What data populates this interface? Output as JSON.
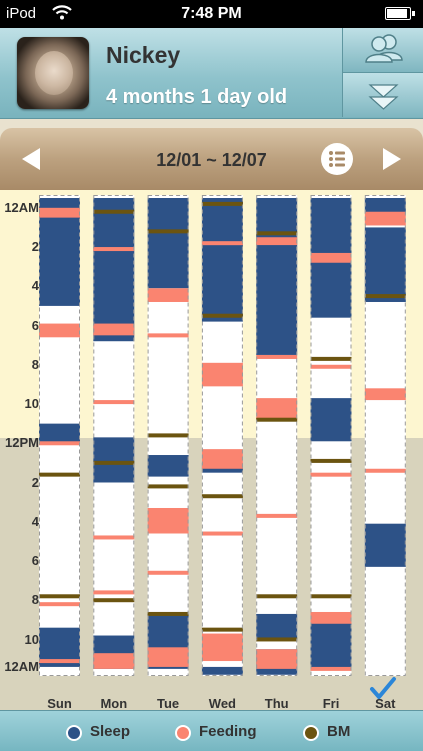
{
  "status_bar": {
    "carrier": "iPod",
    "time": "7:48 PM"
  },
  "profile": {
    "name": "Nickey",
    "age": "4 months 1 day old"
  },
  "week_nav": {
    "range": "12/01 ~ 12/07"
  },
  "hour_labels": [
    "12AM",
    "2",
    "4",
    "6",
    "8",
    "10",
    "12PM",
    "2",
    "4",
    "6",
    "8",
    "10",
    "12AM"
  ],
  "legend": [
    {
      "label": "Sleep",
      "color": "#2d5287"
    },
    {
      "label": "Feeding",
      "color": "#fa8470"
    },
    {
      "label": "BM",
      "color": "#6b5410"
    }
  ],
  "colors": {
    "sleep": "#2d5287",
    "feeding": "#fa8470",
    "bm": "#6b5410",
    "empty": "#ffffff",
    "check": "#2b86d8"
  },
  "chart_data": {
    "type": "timeline",
    "y_unit": "hour of day",
    "ylim": [
      0,
      24
    ],
    "days": [
      {
        "label": "Sun",
        "sleep": [
          [
            0,
            5.5
          ],
          [
            11.5,
            12.5
          ],
          [
            21.9,
            23.9
          ]
        ],
        "feeding": [
          [
            0.5,
            1.0
          ],
          [
            6.4,
            7.1
          ],
          [
            12.4,
            12.6
          ],
          [
            20.6,
            20.8
          ],
          [
            23.5,
            23.7
          ]
        ],
        "bm": [
          14.1,
          20.3
        ]
      },
      {
        "label": "Mon",
        "sleep": [
          [
            0,
            7.3
          ],
          [
            12.2,
            14.5
          ],
          [
            22.3,
            24.0
          ]
        ],
        "feeding": [
          [
            2.5,
            2.7
          ],
          [
            6.4,
            7.0
          ],
          [
            10.3,
            10.5
          ],
          [
            17.2,
            17.4
          ],
          [
            20.0,
            20.2
          ],
          [
            23.2,
            24.0
          ]
        ],
        "bm": [
          0.7,
          13.5,
          20.5
        ]
      },
      {
        "label": "Tue",
        "sleep": [
          [
            0,
            4.6
          ],
          [
            13.1,
            14.2
          ],
          [
            21.2,
            24.0
          ]
        ],
        "feeding": [
          [
            4.6,
            5.3
          ],
          [
            6.9,
            7.1
          ],
          [
            15.8,
            17.1
          ],
          [
            19.0,
            19.2
          ],
          [
            22.9,
            23.9
          ]
        ],
        "bm": [
          1.7,
          12.1,
          14.7,
          21.2
        ]
      },
      {
        "label": "Wed",
        "sleep": [
          [
            0,
            6.3
          ],
          [
            13.5,
            14.0
          ],
          [
            23.9,
            24.3
          ]
        ],
        "feeding": [
          [
            2.2,
            2.4
          ],
          [
            8.4,
            9.6
          ],
          [
            12.8,
            13.8
          ],
          [
            17.0,
            17.2
          ],
          [
            22.2,
            23.6
          ]
        ],
        "bm": [
          0.3,
          6.0,
          15.2,
          22.0
        ]
      },
      {
        "label": "Thu",
        "sleep": [
          [
            0,
            8.0
          ],
          [
            21.2,
            22.5
          ],
          [
            23.0,
            24.3
          ]
        ],
        "feeding": [
          [
            2.0,
            2.4
          ],
          [
            8.0,
            8.2
          ],
          [
            10.2,
            11.3
          ],
          [
            16.1,
            16.3
          ],
          [
            23.0,
            24.0
          ]
        ],
        "bm": [
          1.8,
          11.3,
          20.3,
          22.5
        ]
      },
      {
        "label": "Fri",
        "sleep": [
          [
            0,
            6.1
          ],
          [
            10.2,
            12.4
          ],
          [
            21.5,
            24.0
          ]
        ],
        "feeding": [
          [
            2.8,
            3.3
          ],
          [
            8.5,
            8.7
          ],
          [
            14.0,
            14.2
          ],
          [
            21.1,
            21.7
          ],
          [
            23.9,
            24.1
          ]
        ],
        "bm": [
          8.2,
          13.4,
          20.3
        ]
      },
      {
        "label": "Sat",
        "sleep": [
          [
            0,
            0.8
          ],
          [
            1.5,
            5.3
          ],
          [
            16.6,
            18.8
          ]
        ],
        "feeding": [
          [
            0.7,
            1.4
          ],
          [
            9.7,
            10.3
          ],
          [
            13.8,
            14.0
          ]
        ],
        "bm": [
          5.0
        ]
      }
    ]
  }
}
